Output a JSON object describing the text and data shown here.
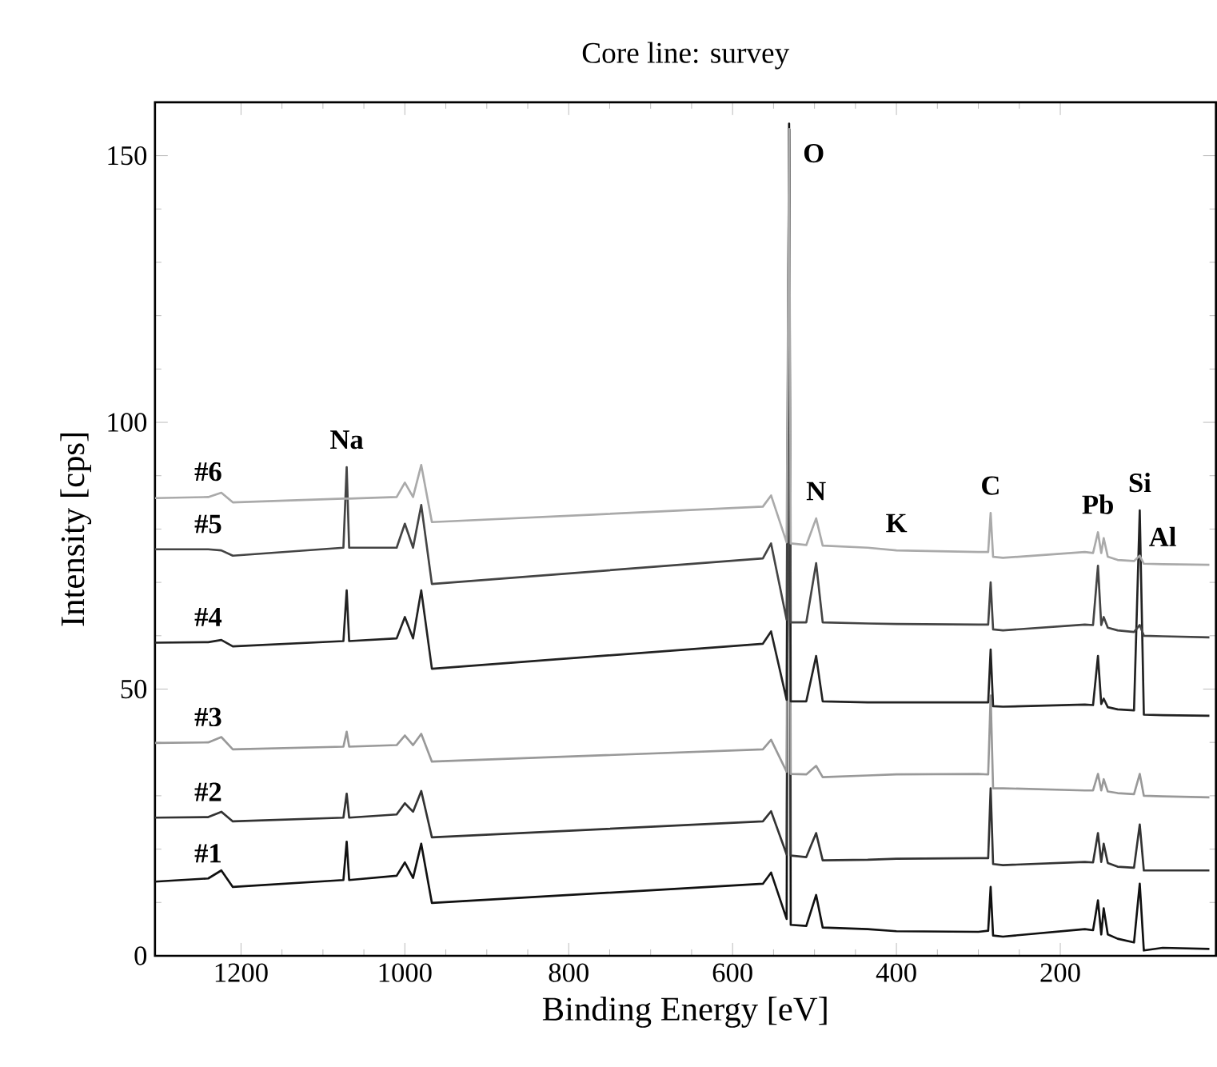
{
  "chart_data": {
    "type": "line",
    "title": "Core line: survey",
    "xlabel": "Binding Energy [eV]",
    "ylabel": "Intensity [cps]",
    "x": [
      1305,
      1240,
      1224,
      1210,
      1075,
      1071,
      1068,
      1010,
      1000,
      990,
      980,
      967,
      563,
      553,
      534,
      531,
      529,
      510,
      498,
      490,
      435,
      400,
      300,
      288,
      285,
      282,
      270,
      170,
      160,
      154,
      150,
      147,
      142,
      130,
      110,
      103,
      98,
      75,
      18
    ],
    "xlim": [
      1305,
      10
    ],
    "xticks": [
      1200,
      1000,
      800,
      600,
      400,
      200
    ],
    "ylim": [
      0,
      160
    ],
    "yticks": [
      0,
      50,
      100,
      150
    ],
    "series": [
      {
        "name": "#1",
        "color": "#111111",
        "values": [
          13.9,
          14.5,
          16,
          12.9,
          14.2,
          21.4,
          14.2,
          15,
          17.5,
          14.6,
          21,
          9.9,
          13.5,
          15.6,
          6.9,
          156,
          5.8,
          5.6,
          11.4,
          5.3,
          5,
          4.6,
          4.5,
          4.7,
          12.9,
          3.8,
          3.6,
          5,
          4.8,
          10.4,
          4,
          8.9,
          4,
          3.2,
          2.5,
          13.5,
          1,
          1.5,
          1.3
        ]
      },
      {
        "name": "#2",
        "color": "#333333",
        "values": [
          25.9,
          26,
          27,
          25.2,
          25.9,
          30.4,
          25.9,
          26.5,
          28.6,
          27,
          30.9,
          22.2,
          25.2,
          27.1,
          19,
          155,
          18.8,
          18.5,
          23,
          17.9,
          18,
          18.2,
          18.3,
          18.3,
          31.4,
          17.2,
          17,
          17.6,
          17.5,
          23,
          17.6,
          21,
          17.4,
          16.7,
          16.5,
          24.6,
          16,
          16,
          16
        ]
      },
      {
        "name": "#3",
        "color": "#999999",
        "values": [
          39.9,
          40,
          41,
          38.7,
          39.2,
          42,
          39.2,
          39.5,
          41.3,
          39.5,
          41.6,
          36.4,
          38.7,
          40.5,
          34.5,
          155,
          34.1,
          34,
          35.6,
          33.5,
          33.8,
          34,
          34.1,
          34,
          48.8,
          31.4,
          31.4,
          31,
          31,
          34.1,
          31,
          33.1,
          30.8,
          30.5,
          30.3,
          34.1,
          30,
          29.9,
          29.7
        ]
      },
      {
        "name": "#4",
        "color": "#222222",
        "values": [
          58.7,
          58.8,
          59.2,
          58,
          59,
          68.5,
          59,
          59.5,
          63.5,
          59.5,
          68.5,
          53.8,
          58.5,
          60.8,
          48,
          155,
          47.7,
          47.7,
          56.2,
          47.7,
          47.5,
          47.5,
          47.5,
          47.5,
          57.4,
          46.8,
          46.7,
          47.1,
          47,
          56.2,
          47.2,
          48.2,
          46.6,
          46.2,
          46,
          83.5,
          45.2,
          45.1,
          45
        ]
      },
      {
        "name": "#5",
        "color": "#444444",
        "values": [
          76.2,
          76.2,
          76,
          75,
          76.5,
          91.6,
          76.5,
          76.5,
          81,
          76.5,
          84.5,
          69.7,
          74.5,
          77.3,
          63,
          155,
          62.5,
          62.5,
          73.6,
          62.5,
          62.3,
          62.2,
          62.1,
          62.1,
          70,
          61.2,
          61,
          62.1,
          62,
          73.1,
          62,
          63.5,
          61.5,
          61,
          60.7,
          62,
          60,
          59.9,
          59.7
        ]
      },
      {
        "name": "#6",
        "color": "#aaaaaa",
        "values": [
          85.8,
          86,
          86.8,
          85,
          85.7,
          85.7,
          85.7,
          86,
          88.7,
          86,
          92,
          81.3,
          84.2,
          86.3,
          77.5,
          155,
          77.3,
          77,
          82,
          76.9,
          76.5,
          76,
          75.7,
          75.7,
          83,
          74.8,
          74.6,
          75.7,
          75.5,
          79.4,
          75.5,
          78.3,
          74.8,
          74.2,
          74,
          75,
          73.5,
          73.4,
          73.3
        ]
      }
    ],
    "annotations": [
      {
        "text": "Na",
        "x": 1071,
        "y": 91.6
      },
      {
        "text": "O",
        "x": 531,
        "y": 156
      },
      {
        "text": "N",
        "x": 498,
        "y": 82
      },
      {
        "text": "K",
        "x": 400,
        "y": 76
      },
      {
        "text": "C",
        "x": 285,
        "y": 83
      },
      {
        "text": "Pb",
        "x": 154,
        "y": 79.4
      },
      {
        "text": "Si",
        "x": 103,
        "y": 83.5
      },
      {
        "text": "Al",
        "x": 75,
        "y": 73.4
      }
    ]
  }
}
